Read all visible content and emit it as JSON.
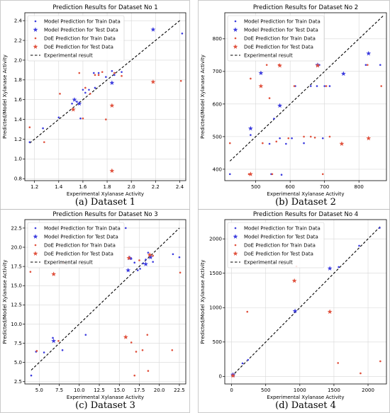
{
  "legend_labels": {
    "model_train": "Model Prediction for Train Data",
    "model_test": "Model Prediction for Test Data",
    "doe_train": "DoE Prediction for Train Data",
    "doe_test": "DoE Prediction for Test Data",
    "experimental": "Experimental result"
  },
  "colors": {
    "model": "#3b3bde",
    "doe": "#e0503c",
    "line": "#000000"
  },
  "chart_data": [
    {
      "type": "scatter",
      "title": "Prediction Results for Dataset No  1",
      "caption": "(a) Dataset 1",
      "xlabel": "Experimental Xylanase Activity",
      "ylabel": "Predicted/Model Xylanase Activity",
      "xlim": [
        1.12,
        2.45
      ],
      "ylim": [
        0.78,
        2.48
      ],
      "xticks": [
        1.2,
        1.4,
        1.6,
        1.8,
        2.0,
        2.2,
        2.4
      ],
      "xtick_labels": [
        "1.2",
        "1.4",
        "1.6",
        "1.8",
        "2.0",
        "2.2",
        "2.4"
      ],
      "yticks": [
        0.8,
        1.0,
        1.2,
        1.4,
        1.6,
        1.8,
        2.0,
        2.2,
        2.4
      ],
      "ytick_labels": [
        "0.8",
        "1.0",
        "1.2",
        "1.4",
        "1.6",
        "1.8",
        "2.0",
        "2.2",
        "2.4"
      ],
      "legend_position": "upper-left",
      "grid": true,
      "line": [
        [
          1.16,
          1.16
        ],
        [
          2.41,
          2.41
        ]
      ],
      "model_train": [
        [
          1.16,
          1.17
        ],
        [
          1.27,
          1.31
        ],
        [
          1.4,
          1.42
        ],
        [
          1.51,
          1.56
        ],
        [
          1.55,
          1.58
        ],
        [
          1.58,
          1.41
        ],
        [
          1.6,
          1.7
        ],
        [
          1.62,
          1.67
        ],
        [
          1.65,
          1.7
        ],
        [
          1.69,
          1.87
        ],
        [
          1.7,
          1.72
        ],
        [
          1.73,
          1.87
        ],
        [
          1.79,
          1.83
        ],
        [
          1.84,
          1.89
        ],
        [
          1.86,
          1.85
        ],
        [
          1.92,
          1.88
        ],
        [
          2.42,
          2.27
        ]
      ],
      "model_test": [
        [
          1.53,
          1.6
        ],
        [
          1.57,
          1.56
        ],
        [
          1.84,
          1.77
        ],
        [
          2.18,
          2.31
        ]
      ],
      "doe_train": [
        [
          1.16,
          1.32
        ],
        [
          1.28,
          1.17
        ],
        [
          1.41,
          1.66
        ],
        [
          1.57,
          1.87
        ],
        [
          1.6,
          1.41
        ],
        [
          1.62,
          1.72
        ],
        [
          1.66,
          1.66
        ],
        [
          1.7,
          1.85
        ],
        [
          1.73,
          1.85
        ],
        [
          1.76,
          1.88
        ],
        [
          1.79,
          1.4
        ],
        [
          1.86,
          1.87
        ],
        [
          1.92,
          1.84
        ],
        [
          2.41,
          1.79
        ]
      ],
      "doe_test": [
        [
          1.52,
          1.5
        ],
        [
          1.84,
          1.54
        ],
        [
          1.84,
          0.88
        ],
        [
          2.18,
          1.78
        ]
      ]
    },
    {
      "type": "scatter",
      "title": "Prediction Results for Dataset No 2",
      "caption": "(b) Dataset 2",
      "xlabel": "Experimental Xylanase Activity",
      "ylabel": "Predicted/Model Xylanase Activity",
      "xlim": [
        410,
        880
      ],
      "ylim": [
        365,
        880
      ],
      "xticks": [
        500,
        600,
        700,
        800
      ],
      "xtick_labels": [
        "500",
        "600",
        "700",
        "800"
      ],
      "yticks": [
        400,
        500,
        600,
        700,
        800
      ],
      "ytick_labels": [
        "400",
        "500",
        "600",
        "700",
        "800"
      ],
      "legend_position": "upper-left",
      "grid": true,
      "line": [
        [
          425,
          425
        ],
        [
          870,
          870
        ]
      ],
      "model_train": [
        [
          425,
          385
        ],
        [
          485,
          505
        ],
        [
          540,
          478
        ],
        [
          545,
          385
        ],
        [
          553,
          555
        ],
        [
          570,
          495
        ],
        [
          575,
          383
        ],
        [
          588,
          478
        ],
        [
          605,
          495
        ],
        [
          615,
          655
        ],
        [
          640,
          480
        ],
        [
          660,
          655
        ],
        [
          678,
          655
        ],
        [
          685,
          720
        ],
        [
          695,
          495
        ],
        [
          700,
          655
        ],
        [
          715,
          655
        ],
        [
          820,
          720
        ],
        [
          862,
          720
        ]
      ],
      "model_test": [
        [
          485,
          525
        ],
        [
          515,
          695
        ],
        [
          570,
          595
        ],
        [
          680,
          720
        ],
        [
          755,
          693
        ],
        [
          828,
          755
        ]
      ],
      "doe_train": [
        [
          425,
          480
        ],
        [
          480,
          385
        ],
        [
          485,
          678
        ],
        [
          520,
          480
        ],
        [
          532,
          720
        ],
        [
          540,
          618
        ],
        [
          548,
          385
        ],
        [
          560,
          485
        ],
        [
          567,
          720
        ],
        [
          595,
          495
        ],
        [
          612,
          655
        ],
        [
          640,
          500
        ],
        [
          660,
          500
        ],
        [
          672,
          497
        ],
        [
          695,
          385
        ],
        [
          705,
          655
        ],
        [
          715,
          500
        ],
        [
          825,
          720
        ],
        [
          865,
          655
        ]
      ],
      "doe_test": [
        [
          485,
          385
        ],
        [
          515,
          655
        ],
        [
          570,
          718
        ],
        [
          680,
          718
        ],
        [
          750,
          478
        ],
        [
          828,
          495
        ]
      ]
    },
    {
      "type": "scatter",
      "title": "Prediction Results for Dataset No 3",
      "caption": "(c) Dataset 3",
      "xlabel": "Experimental Xylanase Activity",
      "ylabel": "Predicted/Model Xylanase Activity",
      "xlim": [
        3.2,
        23.3
      ],
      "ylim": [
        2.2,
        23.6
      ],
      "xticks": [
        5.0,
        7.5,
        10.0,
        12.5,
        15.0,
        17.5,
        20.0,
        22.5
      ],
      "xtick_labels": [
        "5.0",
        "7.5",
        "10.0",
        "12.5",
        "15.0",
        "17.5",
        "20.0",
        "22.5"
      ],
      "yticks": [
        2.5,
        5.0,
        7.5,
        10.0,
        12.5,
        15.0,
        17.5,
        20.0,
        22.5
      ],
      "ytick_labels": [
        "2.5",
        "5.0",
        "7.5",
        "10.0",
        "12.5",
        "15.0",
        "17.5",
        "20.0",
        "22.5"
      ],
      "legend_position": "upper-left",
      "grid": true,
      "line": [
        [
          4.0,
          4.0
        ],
        [
          22.5,
          22.5
        ]
      ],
      "model_train": [
        [
          4.0,
          3.3
        ],
        [
          4.6,
          6.4
        ],
        [
          5.6,
          6.3
        ],
        [
          6.7,
          8.2
        ],
        [
          7.9,
          6.6
        ],
        [
          10.8,
          8.6
        ],
        [
          15.8,
          22.5
        ],
        [
          16.5,
          18.5
        ],
        [
          16.9,
          18.0
        ],
        [
          17.3,
          17.0
        ],
        [
          17.6,
          17.2
        ],
        [
          18.0,
          17.9
        ],
        [
          18.3,
          18.4
        ],
        [
          18.6,
          19.3
        ],
        [
          18.9,
          18.8
        ],
        [
          19.2,
          18.1
        ],
        [
          21.7,
          19.1
        ],
        [
          22.5,
          18.7
        ]
      ],
      "model_test": [
        [
          6.8,
          7.8
        ],
        [
          16.1,
          17.0
        ],
        [
          16.3,
          18.6
        ],
        [
          18.3,
          17.8
        ],
        [
          18.9,
          18.7
        ]
      ],
      "doe_train": [
        [
          3.9,
          16.8
        ],
        [
          4.7,
          6.5
        ],
        [
          7.4,
          7.8
        ],
        [
          8.0,
          18.0
        ],
        [
          15.8,
          8.3
        ],
        [
          16.5,
          7.6
        ],
        [
          16.9,
          3.3
        ],
        [
          17.1,
          6.4
        ],
        [
          17.5,
          18.3
        ],
        [
          17.9,
          6.6
        ],
        [
          18.5,
          8.6
        ],
        [
          18.6,
          3.9
        ],
        [
          19.2,
          18.9
        ],
        [
          21.6,
          6.6
        ],
        [
          22.6,
          16.7
        ]
      ],
      "doe_test": [
        [
          6.8,
          16.5
        ],
        [
          15.8,
          8.3
        ],
        [
          16.2,
          18.6
        ],
        [
          18.8,
          19.0
        ]
      ]
    },
    {
      "type": "scatter",
      "title": "Prediction Results for Dataset No 4",
      "caption": "(d) Dataset 4",
      "xlabel": "Experimental Xylanase Activity",
      "ylabel": "Predicted/Model Xylanase Activity",
      "xlim": [
        -100,
        2270
      ],
      "ylim": [
        -110,
        2280
      ],
      "xticks": [
        0,
        500,
        1000,
        1500,
        2000
      ],
      "xtick_labels": [
        "0",
        "500",
        "1000",
        "1500",
        "2000"
      ],
      "yticks": [
        0,
        500,
        1000,
        1500,
        2000
      ],
      "ytick_labels": [
        "0",
        "500",
        "1000",
        "1500",
        "2000"
      ],
      "legend_position": "upper-left",
      "grid": true,
      "line": [
        [
          0,
          0
        ],
        [
          2180,
          2180
        ]
      ],
      "model_train": [
        [
          10,
          10
        ],
        [
          20,
          30
        ],
        [
          30,
          5
        ],
        [
          160,
          190
        ],
        [
          240,
          240
        ],
        [
          1570,
          1590
        ],
        [
          1870,
          1900
        ],
        [
          2170,
          2160
        ]
      ],
      "model_test": [
        [
          20,
          25
        ],
        [
          930,
          950
        ],
        [
          1440,
          1570
        ]
      ],
      "doe_train": [
        [
          20,
          5
        ],
        [
          30,
          15
        ],
        [
          230,
          940
        ],
        [
          950,
          1600
        ],
        [
          1560,
          195
        ],
        [
          1890,
          45
        ],
        [
          2180,
          220
        ]
      ],
      "doe_test": [
        [
          20,
          10
        ],
        [
          920,
          1390
        ],
        [
          1440,
          940
        ]
      ]
    }
  ]
}
